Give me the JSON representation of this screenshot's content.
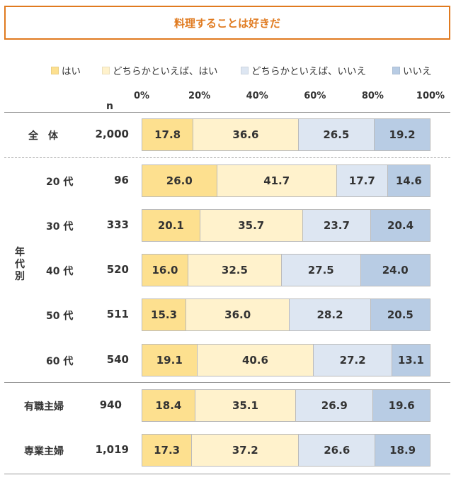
{
  "title": "料理することは好きだ",
  "n_label": "n",
  "group_label": "年代別",
  "chart_data": {
    "type": "bar",
    "orientation": "horizontal",
    "stacked": true,
    "xlim": [
      0,
      100
    ],
    "ticks": [
      "0%",
      "20%",
      "40%",
      "60%",
      "80%",
      "100%"
    ],
    "legend_position": "top",
    "series": [
      {
        "name": "はい",
        "color": "#fde08f"
      },
      {
        "name": "どちらかといえば、はい",
        "color": "#fff2cc"
      },
      {
        "name": "どちらかといえば、いいえ",
        "color": "#dde6f2"
      },
      {
        "name": "いいえ",
        "color": "#b8cce4"
      }
    ],
    "rows": [
      {
        "label": "全　体",
        "n": "2,000",
        "values": [
          17.8,
          36.6,
          26.5,
          19.2
        ]
      },
      {
        "label": "20 代",
        "n": "96",
        "values": [
          26.0,
          41.7,
          17.7,
          14.6
        ]
      },
      {
        "label": "30 代",
        "n": "333",
        "values": [
          20.1,
          35.7,
          23.7,
          20.4
        ]
      },
      {
        "label": "40 代",
        "n": "520",
        "values": [
          16.0,
          32.5,
          27.5,
          24.0
        ]
      },
      {
        "label": "50 代",
        "n": "511",
        "values": [
          15.3,
          36.0,
          28.2,
          20.5
        ]
      },
      {
        "label": "60 代",
        "n": "540",
        "values": [
          19.1,
          40.6,
          27.2,
          13.1
        ]
      },
      {
        "label": "有職主婦",
        "n": "940",
        "values": [
          18.4,
          35.1,
          26.9,
          19.6
        ]
      },
      {
        "label": "専業主婦",
        "n": "1,019",
        "values": [
          17.3,
          37.2,
          26.6,
          18.9
        ]
      }
    ]
  }
}
